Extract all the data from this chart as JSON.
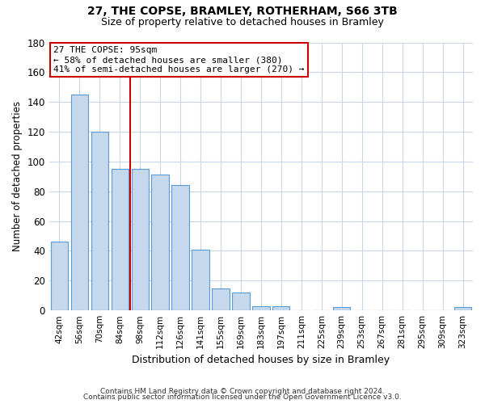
{
  "title": "27, THE COPSE, BRAMLEY, ROTHERHAM, S66 3TB",
  "subtitle": "Size of property relative to detached houses in Bramley",
  "xlabel": "Distribution of detached houses by size in Bramley",
  "ylabel": "Number of detached properties",
  "bar_labels": [
    "42sqm",
    "56sqm",
    "70sqm",
    "84sqm",
    "98sqm",
    "112sqm",
    "126sqm",
    "141sqm",
    "155sqm",
    "169sqm",
    "183sqm",
    "197sqm",
    "211sqm",
    "225sqm",
    "239sqm",
    "253sqm",
    "267sqm",
    "281sqm",
    "295sqm",
    "309sqm",
    "323sqm"
  ],
  "bar_values": [
    46,
    145,
    120,
    95,
    95,
    91,
    84,
    41,
    15,
    12,
    3,
    3,
    0,
    0,
    2,
    0,
    0,
    0,
    0,
    0,
    2
  ],
  "bar_color": "#c5d8ec",
  "bar_edge_color": "#5b9bd5",
  "vline_color": "#cc0000",
  "ylim": [
    0,
    180
  ],
  "yticks": [
    0,
    20,
    40,
    60,
    80,
    100,
    120,
    140,
    160,
    180
  ],
  "annotation_title": "27 THE COPSE: 95sqm",
  "annotation_line1": "← 58% of detached houses are smaller (380)",
  "annotation_line2": "41% of semi-detached houses are larger (270) →",
  "annotation_box_color": "#ffffff",
  "annotation_box_edge_color": "#cc0000",
  "footnote1": "Contains HM Land Registry data © Crown copyright and database right 2024.",
  "footnote2": "Contains public sector information licensed under the Open Government Licence v3.0.",
  "background_color": "#ffffff",
  "grid_color": "#c8d8e8"
}
